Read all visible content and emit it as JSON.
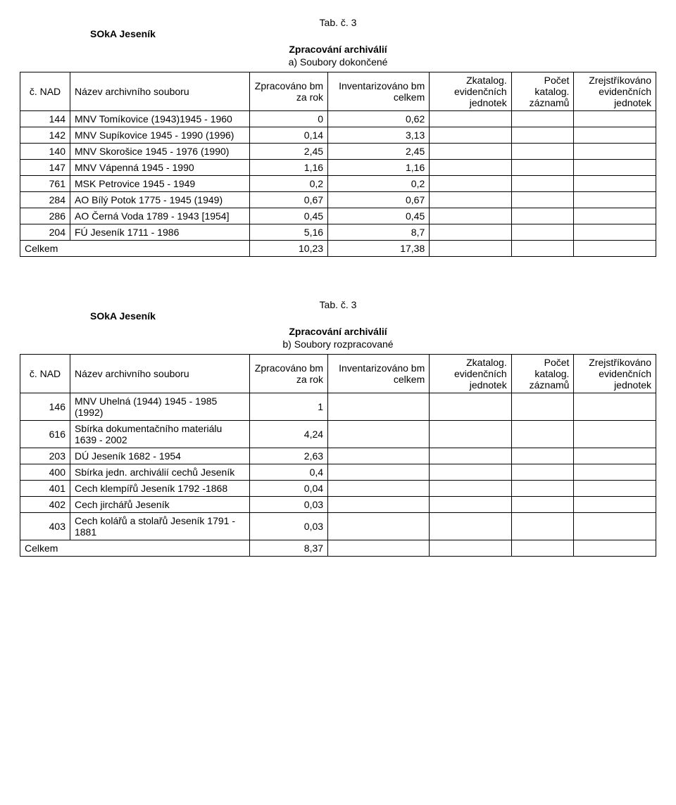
{
  "org": "SOkA Jeseník",
  "tab_label": "Tab. č. 3",
  "section_title": "Zpracování archiválií",
  "subsection_a": "a) Soubory dokončené",
  "subsection_b": "b) Soubory rozpracované",
  "headers": {
    "nad": "č. NAD",
    "name": "Název archivního souboru",
    "zprac": "Zpracováno bm za rok",
    "inv": "Inventarizováno bm celkem",
    "zkat": "Zkatalog. evidenčních jednotek",
    "pocet": "Počet katalog. záznamů",
    "zrej": "Zrejstříkováno evidenčních jednotek"
  },
  "table_a": {
    "rows": [
      {
        "nad": "144",
        "name": "MNV Tomíkovice (1943)1945 - 1960",
        "zprac": "0",
        "inv": "0,62"
      },
      {
        "nad": "142",
        "name": "MNV Supíkovice 1945 - 1990 (1996)",
        "zprac": "0,14",
        "inv": "3,13"
      },
      {
        "nad": "140",
        "name": "MNV Skorošice 1945 - 1976 (1990)",
        "zprac": "2,45",
        "inv": "2,45"
      },
      {
        "nad": "147",
        "name": "MNV Vápenná 1945 - 1990",
        "zprac": "1,16",
        "inv": "1,16"
      },
      {
        "nad": "761",
        "name": "MSK Petrovice 1945 - 1949",
        "zprac": "0,2",
        "inv": "0,2"
      },
      {
        "nad": "284",
        "name": "AO Bílý Potok 1775 - 1945 (1949)",
        "zprac": "0,67",
        "inv": "0,67"
      },
      {
        "nad": "286",
        "name": "AO Černá Voda 1789 - 1943 [1954]",
        "zprac": "0,45",
        "inv": "0,45"
      },
      {
        "nad": "204",
        "name": "FÚ Jeseník 1711 - 1986",
        "zprac": "5,16",
        "inv": "8,7"
      }
    ],
    "total_label": "Celkem",
    "total_zprac": "10,23",
    "total_inv": "17,38"
  },
  "table_b": {
    "rows": [
      {
        "nad": "146",
        "name": "MNV Uhelná (1944) 1945 - 1985 (1992)",
        "zprac": "1",
        "inv": ""
      },
      {
        "nad": "616",
        "name": "Sbírka dokumentačního materiálu 1639 - 2002",
        "zprac": "4,24",
        "inv": ""
      },
      {
        "nad": "203",
        "name": "DÚ Jeseník 1682 - 1954",
        "zprac": "2,63",
        "inv": ""
      },
      {
        "nad": "400",
        "name": "Sbírka jedn. archiválií cechů Jeseník",
        "zprac": "0,4",
        "inv": ""
      },
      {
        "nad": "401",
        "name": "Cech klempířů Jeseník 1792 -1868",
        "zprac": "0,04",
        "inv": ""
      },
      {
        "nad": "402",
        "name": "Cech jirchářů Jeseník",
        "zprac": "0,03",
        "inv": ""
      },
      {
        "nad": "403",
        "name": "Cech kolářů a stolařů Jeseník 1791 - 1881",
        "zprac": "0,03",
        "inv": ""
      }
    ],
    "total_label": "Celkem",
    "total_zprac": "8,37",
    "total_inv": ""
  }
}
